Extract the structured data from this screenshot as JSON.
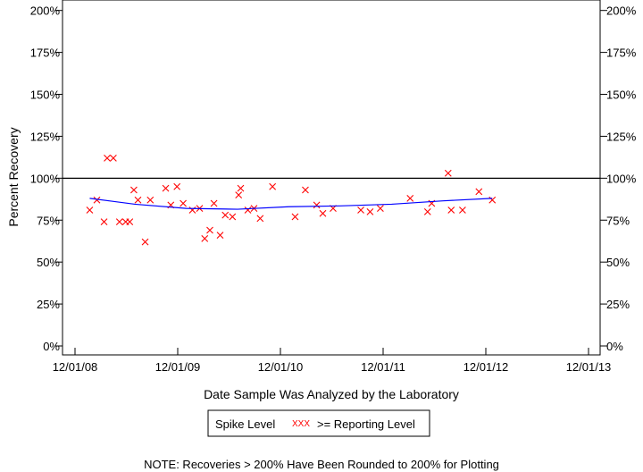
{
  "chart_data": {
    "type": "scatter",
    "title": "",
    "xlabel": "Date Sample Was Analyzed by the Laboratory",
    "ylabel": "Percent Recovery",
    "xlim": [
      2008.917,
      2013.917
    ],
    "ylim": [
      0,
      200
    ],
    "x_ticks": [
      {
        "value": 2008.917,
        "label": "12/01/08"
      },
      {
        "value": 2009.917,
        "label": "12/01/09"
      },
      {
        "value": 2010.917,
        "label": "12/01/10"
      },
      {
        "value": 2011.917,
        "label": "12/01/11"
      },
      {
        "value": 2012.917,
        "label": "12/01/12"
      },
      {
        "value": 2013.917,
        "label": "12/01/13"
      }
    ],
    "y_ticks": [
      {
        "value": 0,
        "label": "0%"
      },
      {
        "value": 25,
        "label": "25%"
      },
      {
        "value": 50,
        "label": "50%"
      },
      {
        "value": 75,
        "label": "75%"
      },
      {
        "value": 100,
        "label": "100%"
      },
      {
        "value": 125,
        "label": "125%"
      },
      {
        "value": 150,
        "label": "150%"
      },
      {
        "value": 175,
        "label": "175%"
      },
      {
        "value": 200,
        "label": "200%"
      }
    ],
    "reference_line": 100,
    "series": [
      {
        "name": ">= Reporting Level",
        "marker": "x",
        "color": "#ff0000",
        "points": [
          [
            2009.06,
            81
          ],
          [
            2009.13,
            87
          ],
          [
            2009.23,
            112
          ],
          [
            2009.29,
            112
          ],
          [
            2009.2,
            74
          ],
          [
            2009.35,
            74
          ],
          [
            2009.41,
            74
          ],
          [
            2009.45,
            74
          ],
          [
            2009.49,
            93
          ],
          [
            2009.53,
            87
          ],
          [
            2009.6,
            62
          ],
          [
            2009.65,
            87
          ],
          [
            2009.8,
            94
          ],
          [
            2009.91,
            95
          ],
          [
            2009.85,
            84
          ],
          [
            2009.97,
            85
          ],
          [
            2010.06,
            81
          ],
          [
            2010.13,
            82
          ],
          [
            2010.18,
            64
          ],
          [
            2010.23,
            69
          ],
          [
            2010.27,
            85
          ],
          [
            2010.33,
            66
          ],
          [
            2010.38,
            78
          ],
          [
            2010.45,
            77
          ],
          [
            2010.51,
            90
          ],
          [
            2010.53,
            94
          ],
          [
            2010.6,
            81
          ],
          [
            2010.66,
            82
          ],
          [
            2010.72,
            76
          ],
          [
            2010.84,
            95
          ],
          [
            2011.06,
            77
          ],
          [
            2011.16,
            93
          ],
          [
            2011.27,
            84
          ],
          [
            2011.33,
            79
          ],
          [
            2011.43,
            82
          ],
          [
            2011.7,
            81
          ],
          [
            2011.79,
            80
          ],
          [
            2011.89,
            82
          ],
          [
            2012.18,
            88
          ],
          [
            2012.35,
            80
          ],
          [
            2012.39,
            85
          ],
          [
            2012.55,
            103
          ],
          [
            2012.58,
            81
          ],
          [
            2012.69,
            81
          ],
          [
            2012.85,
            92
          ],
          [
            2012.98,
            87
          ]
        ]
      },
      {
        "name": "Trend",
        "type": "line",
        "color": "#0000ff",
        "points": [
          [
            2009.06,
            88
          ],
          [
            2009.5,
            84.5
          ],
          [
            2010.0,
            82
          ],
          [
            2010.5,
            81.5
          ],
          [
            2011.0,
            83
          ],
          [
            2011.5,
            83.5
          ],
          [
            2012.0,
            84.5
          ],
          [
            2012.5,
            86.5
          ],
          [
            2012.98,
            88
          ]
        ]
      }
    ],
    "legend": {
      "placement": "bottom-center",
      "label_spike": "Spike Level",
      "label_reporting": ">= Reporting Level",
      "marker_glyph": "XXX"
    },
    "note": "NOTE: Recoveries > 200% Have Been Rounded to 200% for Plotting"
  }
}
